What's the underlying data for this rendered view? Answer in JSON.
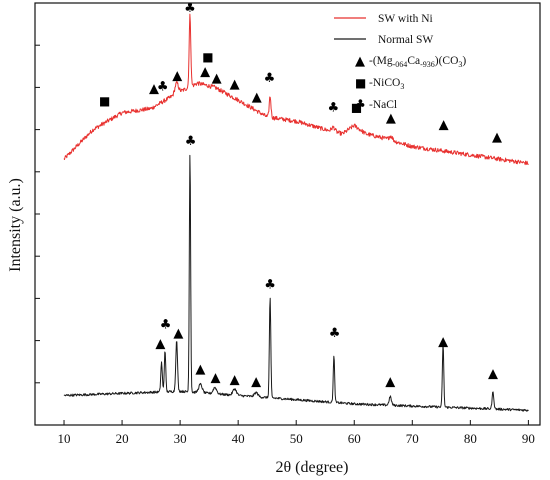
{
  "chart_data": {
    "type": "line",
    "xlabel": "2θ (degree)",
    "ylabel": "Intensity (a.u.)",
    "xlim": [
      5,
      92
    ],
    "ylim": [
      0,
      100
    ],
    "x_ticks": [
      10,
      20,
      30,
      40,
      50,
      60,
      70,
      80,
      90
    ],
    "y_ticks_labeled": false,
    "grid": false,
    "legend_position": "top-right",
    "series": [
      {
        "name": "SW with Ni",
        "color": "#e8312f",
        "baseline": [
          [
            10,
            63
          ],
          [
            15,
            70
          ],
          [
            20,
            74
          ],
          [
            25,
            75
          ],
          [
            30,
            79
          ],
          [
            33,
            81
          ],
          [
            36,
            80
          ],
          [
            40,
            77
          ],
          [
            45,
            73
          ],
          [
            50,
            72
          ],
          [
            55,
            70
          ],
          [
            58,
            69
          ],
          [
            60,
            71
          ],
          [
            62,
            69
          ],
          [
            65,
            68
          ],
          [
            70,
            66
          ],
          [
            75,
            65
          ],
          [
            80,
            64
          ],
          [
            85,
            63
          ],
          [
            90,
            62
          ]
        ],
        "peaks": [
          [
            29.4,
            2.5,
            0.3
          ],
          [
            31.7,
            17,
            0.14
          ],
          [
            45.5,
            5,
            0.15
          ],
          [
            56.4,
            1,
            0.3
          ],
          [
            66.3,
            1,
            0.3
          ]
        ]
      },
      {
        "name": "Normal SW",
        "color": "#1a1a1a",
        "baseline": [
          [
            10,
            7
          ],
          [
            20,
            7.5
          ],
          [
            30,
            8
          ],
          [
            40,
            7
          ],
          [
            50,
            6
          ],
          [
            60,
            5
          ],
          [
            70,
            4.5
          ],
          [
            80,
            4
          ],
          [
            90,
            3.5
          ]
        ],
        "peaks": [
          [
            26.8,
            7,
            0.13
          ],
          [
            27.4,
            10,
            0.12
          ],
          [
            29.4,
            12,
            0.15
          ],
          [
            31.7,
            57,
            0.11
          ],
          [
            33.5,
            2,
            0.3
          ],
          [
            36,
            1.5,
            0.3
          ],
          [
            39.4,
            1.5,
            0.3
          ],
          [
            43.1,
            1,
            0.3
          ],
          [
            45.5,
            24,
            0.12
          ],
          [
            56.5,
            11,
            0.12
          ],
          [
            66.2,
            2,
            0.2
          ],
          [
            75.3,
            15,
            0.12
          ],
          [
            83.9,
            4,
            0.15
          ]
        ]
      }
    ],
    "legend_markers": [
      {
        "symbol": "▲",
        "label": "-(Mg.064Ca.936)(CO3)",
        "label_main": "-(Mg",
        "label_sub1": "-064",
        "label_mid": "Ca",
        "label_sub2": "-936",
        "label_end": ")(CO",
        "label_sub3": "3",
        "label_tail": ")"
      },
      {
        "symbol": "■",
        "label": "-NiCO3",
        "label_main": "-NiCO",
        "label_sub": "3"
      },
      {
        "symbol": "♣",
        "label": "-NaCl"
      }
    ],
    "annotations": {
      "red": [
        {
          "x": 17,
          "y": 77,
          "symbol": "■"
        },
        {
          "x": 25.5,
          "y": 80,
          "symbol": "▲"
        },
        {
          "x": 27,
          "y": 80.5,
          "symbol": "♣"
        },
        {
          "x": 29.5,
          "y": 83,
          "symbol": "▲"
        },
        {
          "x": 31.7,
          "y": 99,
          "symbol": "♣"
        },
        {
          "x": 34.8,
          "y": 87.5,
          "symbol": "■"
        },
        {
          "x": 34.3,
          "y": 84,
          "symbol": "▲"
        },
        {
          "x": 36.3,
          "y": 82.5,
          "symbol": "▲"
        },
        {
          "x": 39.4,
          "y": 81,
          "symbol": "▲"
        },
        {
          "x": 43.2,
          "y": 78,
          "symbol": "▲"
        },
        {
          "x": 45.4,
          "y": 82.5,
          "symbol": "♣"
        },
        {
          "x": 56.4,
          "y": 75.5,
          "symbol": "♣"
        },
        {
          "x": 60.4,
          "y": 75.5,
          "symbol": "■"
        },
        {
          "x": 66.3,
          "y": 73,
          "symbol": "▲"
        },
        {
          "x": 75.4,
          "y": 71.5,
          "symbol": "▲"
        },
        {
          "x": 84.6,
          "y": 68.5,
          "symbol": "▲"
        }
      ],
      "black": [
        {
          "x": 26.6,
          "y": 19.5,
          "symbol": "▲"
        },
        {
          "x": 27.5,
          "y": 24,
          "symbol": "♣"
        },
        {
          "x": 29.7,
          "y": 22,
          "symbol": "▲"
        },
        {
          "x": 31.8,
          "y": 67.5,
          "symbol": "♣"
        },
        {
          "x": 33.5,
          "y": 13.5,
          "symbol": "▲"
        },
        {
          "x": 36.1,
          "y": 11.5,
          "symbol": "▲"
        },
        {
          "x": 39.4,
          "y": 11,
          "symbol": "▲"
        },
        {
          "x": 43.1,
          "y": 10.5,
          "symbol": "▲"
        },
        {
          "x": 45.5,
          "y": 33.5,
          "symbol": "♣"
        },
        {
          "x": 56.6,
          "y": 22,
          "symbol": "♣"
        },
        {
          "x": 66.2,
          "y": 10.5,
          "symbol": "▲"
        },
        {
          "x": 75.3,
          "y": 20,
          "symbol": "▲"
        },
        {
          "x": 83.9,
          "y": 12.5,
          "symbol": "▲"
        }
      ]
    }
  }
}
